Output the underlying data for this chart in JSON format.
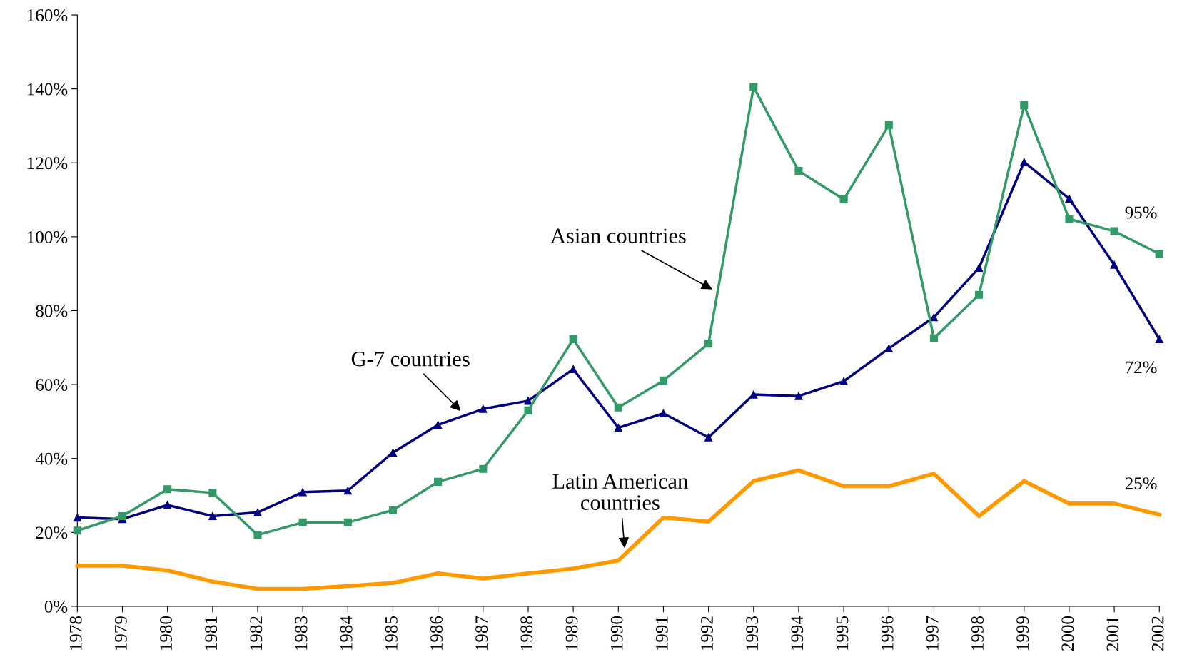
{
  "chart_data": {
    "type": "line",
    "x": [
      1978,
      1979,
      1980,
      1981,
      1982,
      1983,
      1984,
      1985,
      1986,
      1987,
      1988,
      1989,
      1990,
      1991,
      1992,
      1993,
      1994,
      1995,
      1996,
      1997,
      1998,
      1999,
      2000,
      2001,
      2002
    ],
    "series": [
      {
        "name": "G-7 countries",
        "color": "#000080",
        "marker": "triangle",
        "values": [
          24.0,
          23.6,
          27.4,
          24.4,
          25.4,
          30.9,
          31.3,
          41.6,
          49.1,
          53.4,
          55.6,
          64.2,
          48.3,
          52.2,
          45.7,
          57.3,
          56.9,
          60.9,
          69.8,
          78.2,
          91.6,
          120.2,
          110.3,
          92.4,
          72.3
        ],
        "value_labels": [
          null,
          null,
          null,
          null,
          null,
          null,
          null,
          null,
          null,
          null,
          null,
          null,
          null,
          null,
          null,
          null,
          null,
          null,
          null,
          null,
          null,
          null,
          null,
          null,
          "72%"
        ]
      },
      {
        "name": "Asian countries",
        "color": "#339966",
        "marker": "square",
        "values": [
          20.5,
          24.4,
          31.7,
          30.7,
          19.3,
          22.7,
          22.7,
          26.0,
          33.7,
          37.2,
          53.0,
          72.3,
          53.8,
          61.1,
          71.1,
          140.5,
          117.8,
          110.1,
          130.2,
          72.5,
          84.3,
          135.6,
          104.8,
          101.5,
          95.4
        ],
        "value_labels": [
          null,
          null,
          null,
          null,
          null,
          null,
          null,
          null,
          null,
          null,
          null,
          null,
          null,
          null,
          null,
          null,
          null,
          null,
          null,
          null,
          null,
          null,
          null,
          null,
          "95%"
        ]
      },
      {
        "name": "Latin American countries",
        "color": "#ff9900",
        "marker": "none",
        "values": [
          11.0,
          11.0,
          9.7,
          6.7,
          4.7,
          4.7,
          5.5,
          6.3,
          8.9,
          7.5,
          8.9,
          10.2,
          12.4,
          24.0,
          22.9,
          33.9,
          36.8,
          32.5,
          32.5,
          35.9,
          24.4,
          33.9,
          27.8,
          27.8,
          24.8
        ],
        "value_labels": [
          null,
          null,
          null,
          null,
          null,
          null,
          null,
          null,
          null,
          null,
          null,
          null,
          null,
          null,
          null,
          null,
          null,
          null,
          null,
          null,
          null,
          null,
          null,
          null,
          "25%"
        ]
      }
    ],
    "xlim": [
      1978,
      2002
    ],
    "xticks": [
      1978,
      1979,
      1980,
      1981,
      1982,
      1983,
      1984,
      1985,
      1986,
      1987,
      1988,
      1989,
      1990,
      1991,
      1992,
      1993,
      1994,
      1995,
      1996,
      1997,
      1998,
      1999,
      2000,
      2001,
      2002
    ],
    "ylim": [
      0,
      160
    ],
    "yticks": [
      {
        "value": 0,
        "label": "0%"
      },
      {
        "value": 20,
        "label": "20%"
      },
      {
        "value": 40,
        "label": "40%"
      },
      {
        "value": 60,
        "label": "60%"
      },
      {
        "value": 80,
        "label": "80%"
      },
      {
        "value": 100,
        "label": "100%"
      },
      {
        "value": 120,
        "label": "120%"
      },
      {
        "value": 140,
        "label": "140%"
      },
      {
        "value": 160,
        "label": "160%"
      }
    ],
    "grid": false,
    "legend": false,
    "line_style": "solid"
  }
}
